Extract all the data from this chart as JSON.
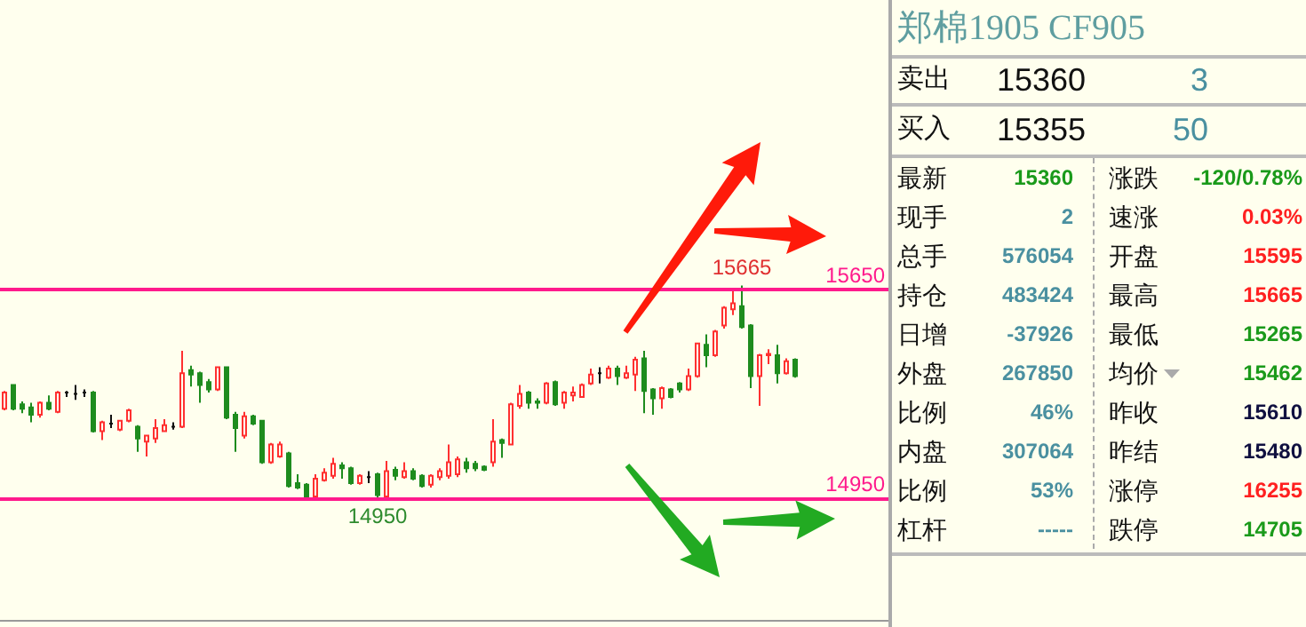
{
  "chart_data": [
    {
      "type": "candlestick",
      "categories": [
        null,
        null,
        null,
        null,
        null,
        null,
        null,
        null,
        null,
        null,
        null,
        null,
        null,
        null,
        null,
        null,
        null,
        null,
        null,
        null,
        null,
        null,
        null,
        null,
        null,
        null,
        null,
        null,
        null,
        null,
        null,
        null,
        null,
        null,
        null,
        null,
        null,
        null,
        null,
        null,
        null,
        null,
        null,
        null,
        null,
        null,
        null,
        null,
        null,
        null,
        null,
        null,
        null,
        null,
        null,
        null,
        null,
        null,
        null,
        null,
        null,
        null,
        null,
        null,
        null,
        null,
        null,
        null,
        null,
        null,
        null,
        null,
        null,
        null,
        null,
        null,
        null,
        null,
        null,
        null,
        null,
        null,
        null,
        null,
        null,
        null,
        null,
        null,
        null,
        null
      ],
      "ohlc": [
        [
          15250,
          15310,
          15245,
          15305
        ],
        [
          15330,
          15330,
          15245,
          15250
        ],
        [
          15265,
          15275,
          15235,
          15250
        ],
        [
          15255,
          15270,
          15205,
          15230
        ],
        [
          15230,
          15275,
          15220,
          15270
        ],
        [
          15270,
          15295,
          15245,
          15250
        ],
        [
          15240,
          15310,
          15235,
          15305
        ],
        [
          15305,
          15310,
          15290,
          15305
        ],
        [
          15300,
          15330,
          15280,
          15300
        ],
        [
          15305,
          15315,
          15290,
          15305
        ],
        [
          15305,
          15310,
          15170,
          15175
        ],
        [
          15175,
          15210,
          15145,
          15205
        ],
        [
          15200,
          15230,
          15185,
          15200
        ],
        [
          15180,
          15210,
          15175,
          15210
        ],
        [
          15210,
          15250,
          15205,
          15245
        ],
        [
          15190,
          15195,
          15105,
          15150
        ],
        [
          15140,
          15160,
          15090,
          15160
        ],
        [
          15150,
          15215,
          15135,
          15185
        ],
        [
          15175,
          15215,
          15175,
          15195
        ],
        [
          15190,
          15205,
          15180,
          15190
        ],
        [
          15190,
          15445,
          15185,
          15370
        ],
        [
          15380,
          15395,
          15325,
          15365
        ],
        [
          15370,
          15375,
          15270,
          15330
        ],
        [
          15340,
          15350,
          15305,
          15315
        ],
        [
          15315,
          15390,
          15310,
          15390
        ],
        [
          15390,
          15390,
          15215,
          15220
        ],
        [
          15230,
          15240,
          15105,
          15185
        ],
        [
          15160,
          15240,
          15150,
          15225
        ],
        [
          15225,
          15230,
          15195,
          15200
        ],
        [
          15210,
          15210,
          15065,
          15070
        ],
        [
          15070,
          15135,
          15065,
          15130
        ],
        [
          15090,
          15140,
          15085,
          15130
        ],
        [
          15100,
          15105,
          14985,
          14990
        ],
        [
          15000,
          15030,
          14980,
          14985
        ],
        [
          14995,
          15000,
          14955,
          14955
        ],
        [
          14955,
          15030,
          14955,
          15015
        ],
        [
          15010,
          15050,
          15005,
          15035
        ],
        [
          15025,
          15085,
          15015,
          15065
        ],
        [
          15060,
          15070,
          15015,
          15050
        ],
        [
          15050,
          15055,
          14995,
          15000
        ],
        [
          15000,
          15030,
          14995,
          15025
        ],
        [
          15020,
          15040,
          15000,
          15020
        ],
        [
          15030,
          15035,
          14950,
          14960
        ],
        [
          14955,
          15075,
          14955,
          15040
        ],
        [
          15045,
          15055,
          15010,
          15025
        ],
        [
          15020,
          15070,
          15015,
          15040
        ],
        [
          15040,
          15050,
          15010,
          15015
        ],
        [
          15025,
          15030,
          14985,
          14990
        ],
        [
          14995,
          15030,
          14985,
          15025
        ],
        [
          15020,
          15050,
          15010,
          15040
        ],
        [
          15025,
          15130,
          15015,
          15070
        ],
        [
          15030,
          15090,
          15020,
          15080
        ],
        [
          15070,
          15085,
          15035,
          15050
        ],
        [
          15065,
          15075,
          15040,
          15050
        ],
        [
          15055,
          15060,
          15040,
          15045
        ],
        [
          15070,
          15215,
          15055,
          15140
        ],
        [
          15145,
          15150,
          15085,
          15135
        ],
        [
          15130,
          15270,
          15130,
          15265
        ],
        [
          15260,
          15330,
          15250,
          15300
        ],
        [
          15305,
          15310,
          15250,
          15270
        ],
        [
          15275,
          15285,
          15250,
          15270
        ],
        [
          15270,
          15340,
          15265,
          15335
        ],
        [
          15340,
          15345,
          15260,
          15265
        ],
        [
          15270,
          15310,
          15250,
          15305
        ],
        [
          15295,
          15325,
          15275,
          15305
        ],
        [
          15290,
          15335,
          15290,
          15330
        ],
        [
          15335,
          15385,
          15330,
          15365
        ],
        [
          15370,
          15390,
          15335,
          15370
        ],
        [
          15355,
          15395,
          15350,
          15385
        ],
        [
          15385,
          15395,
          15330,
          15360
        ],
        [
          15355,
          15395,
          15350,
          15370
        ],
        [
          15365,
          15425,
          15310,
          15415
        ],
        [
          15420,
          15445,
          15235,
          15310
        ],
        [
          15315,
          15320,
          15230,
          15285
        ],
        [
          15285,
          15325,
          15250,
          15320
        ],
        [
          15315,
          15320,
          15285,
          15290
        ],
        [
          15335,
          15340,
          15305,
          15315
        ],
        [
          15315,
          15385,
          15310,
          15360
        ],
        [
          15360,
          15470,
          15355,
          15470
        ],
        [
          15465,
          15500,
          15390,
          15430
        ],
        [
          15430,
          15515,
          15425,
          15510
        ],
        [
          15530,
          15595,
          15520,
          15590
        ],
        [
          15585,
          15650,
          15565,
          15605
        ],
        [
          15595,
          15665,
          15520,
          15525
        ],
        [
          15530,
          15535,
          15320,
          15360
        ],
        [
          15360,
          15435,
          15260,
          15430
        ],
        [
          15430,
          15450,
          15400,
          15435
        ],
        [
          15430,
          15465,
          15335,
          15370
        ],
        [
          15370,
          15420,
          15365,
          15410
        ],
        [
          15415,
          15420,
          15355,
          15360
        ]
      ],
      "ylim": [
        14540,
        16625
      ],
      "ref_lines": [
        {
          "axis": "y",
          "value": 15650,
          "label": "15650",
          "color": "#ff1a8c"
        },
        {
          "axis": "y",
          "value": 14950,
          "label": "14950",
          "color": "#ff1a8c"
        }
      ],
      "annotations": [
        {
          "text": "15665",
          "y": 15665
        },
        {
          "text": "14950",
          "y": 14950
        }
      ],
      "tick_labels": false,
      "grid": false
    },
    {
      "type": "other",
      "title": "郑棉1905  CF905",
      "annotations": [
        "卖出",
        "15360",
        "3",
        "买入",
        "15355",
        "50",
        "最新",
        "15360",
        "涨跌",
        "-120/0.78%",
        "现手",
        "2",
        "速涨",
        "0.03%",
        "总手",
        "576054",
        "开盘",
        "15595",
        "持仓",
        "483424",
        "最高",
        "15665",
        "日增",
        "-37926",
        "最低",
        "15265",
        "外盘",
        "267850",
        "均价",
        "15462",
        "比例",
        "46%",
        "昨收",
        "15610",
        "内盘",
        "307064",
        "昨结",
        "15480",
        "比例",
        "53%",
        "涨停",
        "16255",
        "杠杆",
        "-----",
        "跌停",
        "14705"
      ]
    }
  ]
}
